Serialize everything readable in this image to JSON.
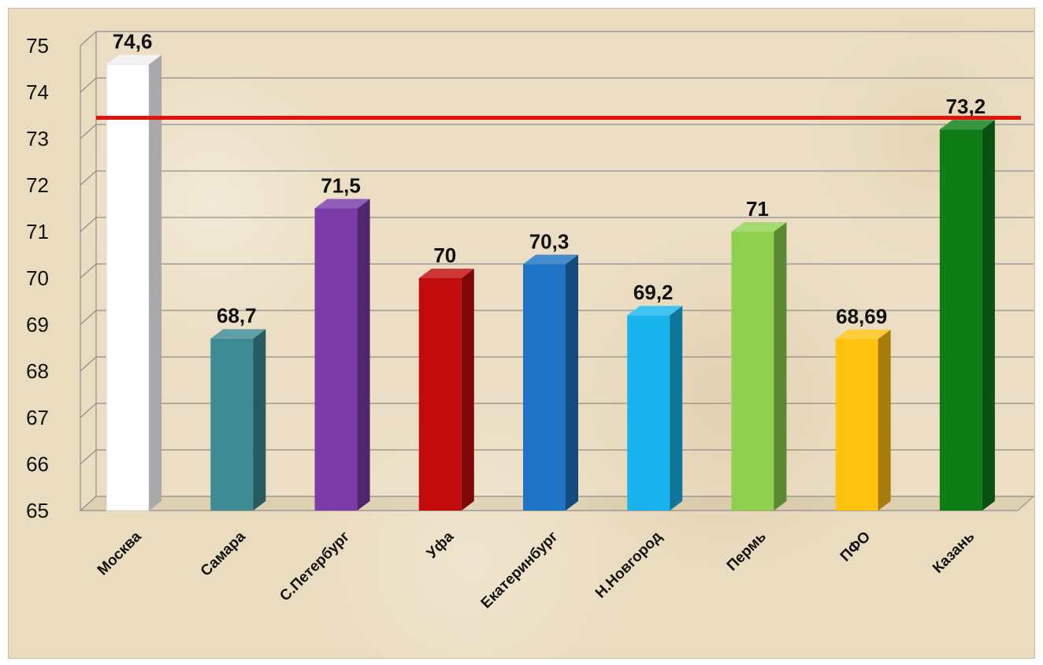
{
  "chart_data": {
    "type": "bar",
    "title": "",
    "xlabel": "",
    "ylabel": "",
    "ylim": [
      65,
      75
    ],
    "yticks": [
      "65",
      "66",
      "67",
      "68",
      "69",
      "70",
      "71",
      "72",
      "73",
      "74",
      "75"
    ],
    "grid": true,
    "categories": [
      "Москва",
      "Самара",
      "С.Петербург",
      "Уфа",
      "Екатеринбург",
      "Н.Новгород",
      "Пермь",
      "ПФО",
      "Казань"
    ],
    "values": [
      74.6,
      68.7,
      71.5,
      70,
      70.3,
      69.2,
      71,
      68.69,
      73.2
    ],
    "value_labels": [
      "74,6",
      "68,7",
      "71,5",
      "70",
      "70,3",
      "69,2",
      "71",
      "68,69",
      "73,2"
    ],
    "bar_colors": [
      "#ffffff",
      "#3d8a92",
      "#7a3aa8",
      "#c20b0b",
      "#1f73c4",
      "#19b4ee",
      "#8fd14f",
      "#ffc20e",
      "#0e7d16"
    ],
    "reference_line": {
      "value": 73.45,
      "color": "#e3120b"
    }
  }
}
